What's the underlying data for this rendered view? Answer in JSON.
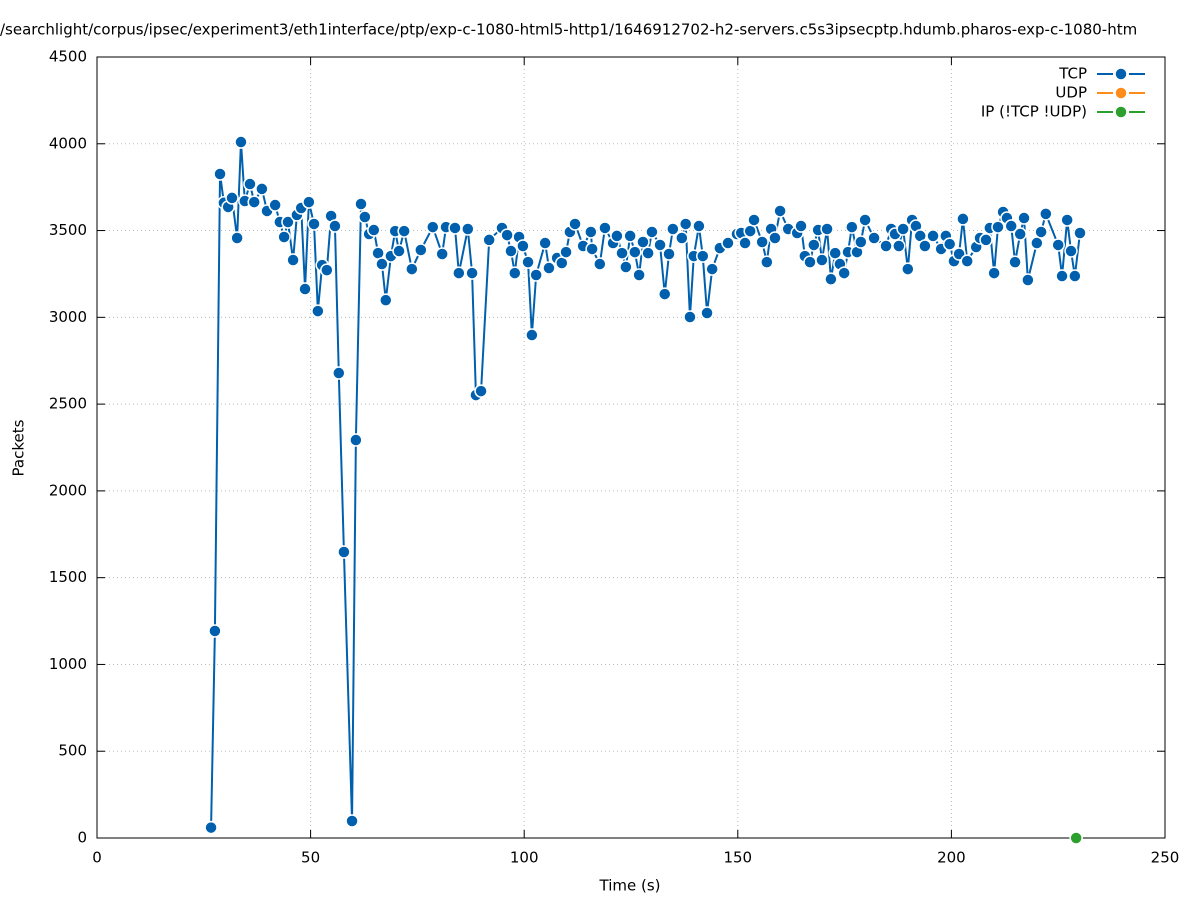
{
  "chart_data": {
    "type": "line",
    "title": "/searchlight/corpus/ipsec/experiment3/eth1interface/ptp/exp-c-1080-html5-http1/1646912702-h2-servers.c5s3ipsecptp.hdumb.pharos-exp-c-1080-htm",
    "x_label": "Time (s)",
    "y_label": "Packets",
    "xlim": [
      0,
      250
    ],
    "ylim": [
      0,
      4500
    ],
    "xticks": [
      0,
      50,
      100,
      150,
      200,
      250
    ],
    "yticks": [
      0,
      500,
      1000,
      1500,
      2000,
      2500,
      3000,
      3500,
      4000,
      4500
    ],
    "grid": true,
    "legend": "top-right",
    "series": [
      {
        "name": "TCP",
        "color": "#0060ad",
        "x": [
          26.7,
          27.6,
          28.8,
          29.7,
          30.7,
          31.6,
          32.8,
          33.7,
          34.6,
          35.8,
          36.8,
          38.6,
          39.8,
          41.7,
          42.8,
          43.8,
          44.7,
          45.9,
          46.8,
          47.8,
          48.7,
          49.6,
          50.8,
          51.7,
          52.7,
          53.8,
          54.8,
          55.7,
          56.6,
          57.8,
          59.7,
          60.6,
          61.8,
          62.7,
          63.7,
          64.8,
          65.8,
          66.7,
          67.6,
          68.8,
          69.8,
          70.7,
          71.9,
          73.7,
          75.8,
          78.6,
          80.8,
          81.7,
          83.8,
          84.7,
          86.8,
          87.8,
          88.7,
          89.9,
          91.8,
          94.8,
          96.0,
          96.9,
          97.8,
          98.8,
          99.7,
          100.9,
          101.8,
          102.8,
          104.9,
          105.8,
          107.7,
          108.8,
          109.8,
          110.7,
          111.9,
          113.8,
          115.6,
          115.9,
          117.7,
          118.9,
          120.8,
          121.7,
          122.9,
          123.8,
          124.8,
          125.9,
          126.9,
          127.8,
          129.0,
          129.9,
          131.8,
          132.9,
          133.9,
          134.8,
          136.9,
          137.8,
          138.8,
          139.7,
          140.9,
          141.8,
          142.8,
          144.0,
          145.8,
          147.7,
          149.8,
          150.8,
          151.7,
          152.9,
          153.8,
          155.7,
          156.8,
          157.8,
          158.7,
          159.9,
          161.8,
          163.9,
          164.8,
          165.7,
          166.9,
          167.8,
          168.8,
          169.7,
          170.9,
          171.8,
          172.8,
          173.9,
          174.9,
          175.8,
          176.7,
          177.9,
          178.8,
          179.8,
          181.9,
          184.7,
          185.9,
          186.8,
          187.7,
          188.7,
          189.8,
          190.8,
          191.7,
          192.7,
          193.8,
          195.7,
          197.6,
          198.7,
          199.6,
          200.6,
          201.8,
          202.7,
          203.7,
          205.8,
          206.7,
          208.1,
          209.0,
          210.0,
          210.9,
          212.1,
          213.0,
          214.0,
          214.9,
          216.1,
          217.0,
          217.9,
          220.0,
          221.0,
          222.1,
          225.0,
          225.9,
          227.1,
          228.0,
          228.9,
          230.1
        ],
        "values": [
          60,
          1193,
          3826,
          3660,
          3636,
          3688,
          3457,
          4010,
          3670,
          3768,
          3664,
          3740,
          3613,
          3647,
          3549,
          3463,
          3549,
          3330,
          3590,
          3630,
          3163,
          3664,
          3538,
          3036,
          3301,
          3272,
          3584,
          3526,
          2679,
          1648,
          98,
          2293,
          3653,
          3578,
          3480,
          3503,
          3370,
          3307,
          3099,
          3353,
          3497,
          3382,
          3497,
          3278,
          3388,
          3520,
          3365,
          3520,
          3515,
          3255,
          3509,
          3255,
          2552,
          2575,
          3446,
          3515,
          3474,
          3382,
          3255,
          3463,
          3411,
          3318,
          2898,
          3244,
          3428,
          3284,
          3342,
          3313,
          3376,
          3492,
          3538,
          3411,
          3492,
          3394,
          3307,
          3515,
          3428,
          3469,
          3370,
          3290,
          3469,
          3376,
          3244,
          3434,
          3370,
          3492,
          3417,
          3134,
          3365,
          3509,
          3457,
          3538,
          3002,
          3353,
          3526,
          3353,
          3025,
          3278,
          3399,
          3428,
          3480,
          3486,
          3428,
          3497,
          3561,
          3434,
          3318,
          3509,
          3457,
          3613,
          3509,
          3486,
          3526,
          3353,
          3318,
          3417,
          3503,
          3330,
          3509,
          3220,
          3370,
          3307,
          3255,
          3376,
          3520,
          3376,
          3434,
          3561,
          3457,
          3411,
          3509,
          3480,
          3411,
          3509,
          3278,
          3561,
          3526,
          3469,
          3411,
          3469,
          3394,
          3469,
          3422,
          3324,
          3365,
          3567,
          3324,
          3405,
          3457,
          3446,
          3515,
          3255,
          3520,
          3607,
          3572,
          3526,
          3318,
          3480,
          3572,
          3215,
          3428,
          3492,
          3596,
          3417,
          3238,
          3561,
          3382,
          3238,
          3486
        ]
      },
      {
        "name": "UDP",
        "color": "#ff8c1a",
        "x": [],
        "values": []
      },
      {
        "name": "IP (!TCP  !UDP)",
        "color": "#2ca02c",
        "x": [
          229.2
        ],
        "values": [
          0
        ]
      }
    ]
  }
}
